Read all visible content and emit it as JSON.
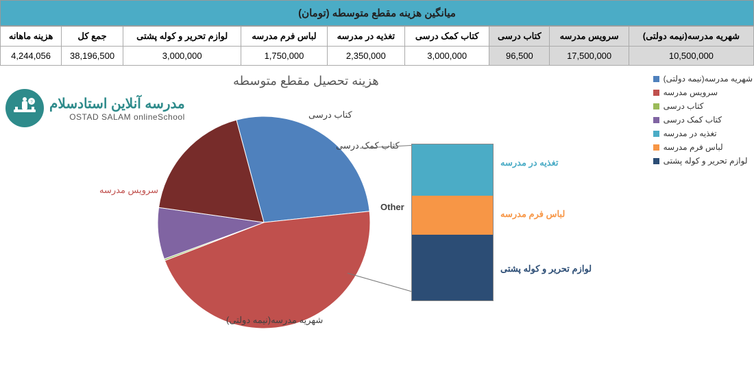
{
  "header": {
    "title": "میانگین هزینه مقطع متوسطه (تومان)"
  },
  "table": {
    "columns": [
      "شهریه مدرسه(نیمه دولتی)",
      "سرویس مدرسه",
      "کتاب درسی",
      "کتاب کمک درسی",
      "تغذیه در مدرسه",
      "لباس فرم مدرسه",
      "لوازم تحریر و کوله پشتی",
      "جمع کل",
      "هزینه ماهانه"
    ],
    "row": [
      "10,500,000",
      "17,500,000",
      "96,500",
      "3,000,000",
      "2,350,000",
      "1,750,000",
      "3,000,000",
      "38,196,500",
      "4,244,056"
    ],
    "grey_cols": [
      0,
      1,
      2
    ]
  },
  "chart": {
    "title": "هزینه تحصیل مقطع متوسطه",
    "type": "pie-with-breakout",
    "slices": [
      {
        "label": "شهریه مدرسه(نیمه دولتی)",
        "value": 10500000,
        "color": "#4f81bd"
      },
      {
        "label": "سرویس مدرسه",
        "value": 17500000,
        "color": "#c0504d"
      },
      {
        "label": "کتاب درسی",
        "value": 96500,
        "color": "#9bbb59"
      },
      {
        "label": "کتاب کمک درسی",
        "value": 3000000,
        "color": "#8064a2"
      },
      {
        "label": "Other",
        "value": 7100000,
        "color": "#772c2a"
      }
    ],
    "other_breakout": [
      {
        "label": "تغذیه در مدرسه",
        "value": 2350000,
        "color": "#4bacc6"
      },
      {
        "label": "لباس فرم مدرسه",
        "value": 1750000,
        "color": "#f79646"
      },
      {
        "label": "لوازم تحریر و کوله پشتی",
        "value": 3000000,
        "color": "#2c4d75"
      }
    ],
    "legend_items": [
      {
        "label": "شهریه مدرسه(نیمه دولتی)",
        "color": "#4f81bd"
      },
      {
        "label": "سرویس مدرسه",
        "color": "#c0504d"
      },
      {
        "label": "کتاب درسی",
        "color": "#9bbb59"
      },
      {
        "label": "کتاب کمک درسی",
        "color": "#8064a2"
      },
      {
        "label": "تغذیه در مدرسه",
        "color": "#4bacc6"
      },
      {
        "label": "لباس فرم مدرسه",
        "color": "#f79646"
      },
      {
        "label": "لوازم تحریر و کوله پشتی",
        "color": "#2c4d75"
      }
    ],
    "background_color": "#ffffff",
    "label_fontsize": 13,
    "title_fontsize": 18,
    "title_color": "#575757"
  },
  "logo": {
    "fa": "مدرسه آنلاین استادسلام",
    "en": "OSTAD SALAM onlineSchool",
    "circle_color": "#2e8b8b"
  },
  "labels": {
    "other": "Other"
  }
}
